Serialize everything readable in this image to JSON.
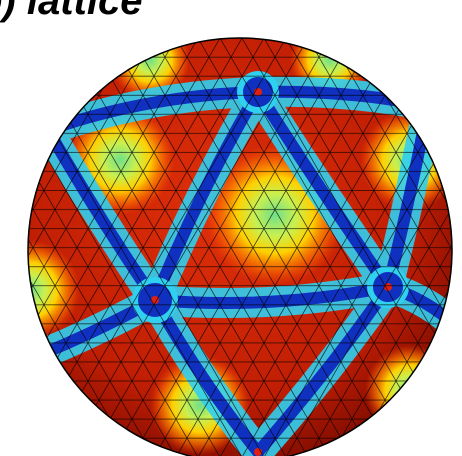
{
  "figure": {
    "title": "b) lattice"
  }
}
